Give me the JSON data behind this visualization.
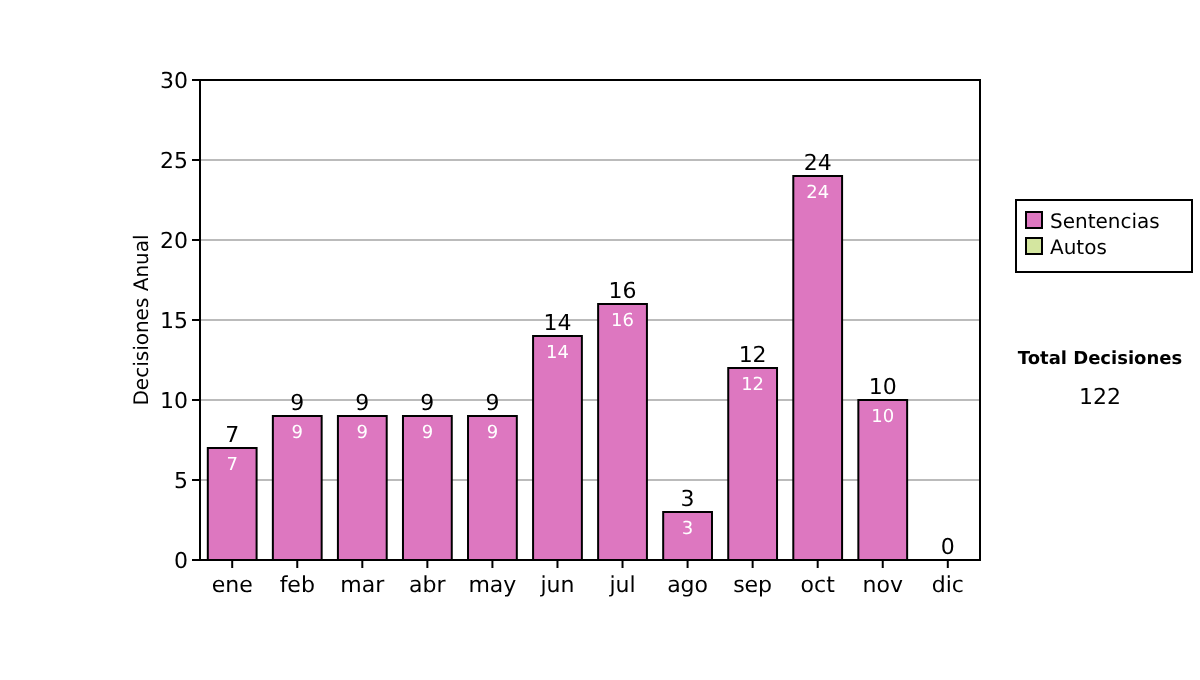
{
  "chart_data": {
    "type": "bar",
    "stacked": true,
    "ylabel": "Decisiones Anual",
    "categories": [
      "ene",
      "feb",
      "mar",
      "abr",
      "may",
      "jun",
      "jul",
      "ago",
      "sep",
      "oct",
      "nov",
      "dic"
    ],
    "series": [
      {
        "name": "Sentencias",
        "color": "#dd77c0",
        "values": [
          7,
          9,
          9,
          9,
          9,
          14,
          16,
          3,
          12,
          24,
          10,
          0
        ],
        "value_labels": [
          "7",
          "9",
          "9",
          "9",
          "9",
          "14",
          "16",
          "3",
          "12",
          "24",
          "10",
          null
        ]
      },
      {
        "name": "Autos",
        "color": "#d4e6a0",
        "values": [
          0,
          0,
          0,
          0,
          0,
          0,
          0,
          0,
          0,
          0,
          0,
          0
        ]
      }
    ],
    "totals": [
      "7",
      "9",
      "9",
      "9",
      "9",
      "14",
      "16",
      "3",
      "12",
      "24",
      "10",
      "0"
    ],
    "ylim": [
      0,
      30
    ],
    "yticks": [
      0,
      5,
      10,
      15,
      20,
      25,
      30
    ],
    "grid": "y",
    "legend": "right",
    "annotations": [
      "Total Decisiones",
      "122"
    ]
  }
}
